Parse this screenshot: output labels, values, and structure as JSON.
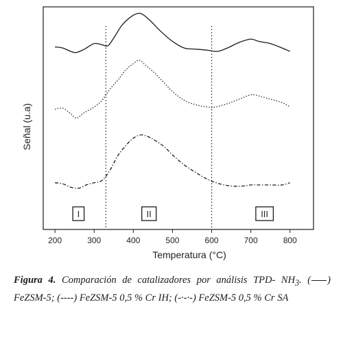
{
  "chart_data": {
    "type": "line",
    "xlabel": "Temperatura (°C)",
    "ylabel": "Señal (u.a)",
    "xlim": [
      170,
      860
    ],
    "ylim": [
      0,
      100
    ],
    "xticks": [
      200,
      300,
      400,
      500,
      600,
      700,
      800
    ],
    "xtick_labels": [
      "200",
      "300",
      "400",
      "500",
      "600",
      "700",
      "800"
    ],
    "yticks": "none",
    "grid": false,
    "legend": "in caption",
    "vlines": [
      330,
      600
    ],
    "regions": [
      {
        "label": "I",
        "x": 260
      },
      {
        "label": "II",
        "x": 440
      },
      {
        "label": "III",
        "x": 735
      }
    ],
    "series": [
      {
        "style": "solid",
        "x": [
          200,
          220,
          240,
          255,
          275,
          300,
          320,
          335,
          350,
          370,
          390,
          410,
          425,
          445,
          470,
          500,
          530,
          560,
          590,
          615,
          640,
          670,
          700,
          720,
          750,
          780,
          800
        ],
        "y": [
          82,
          81.5,
          80,
          79.5,
          81,
          83.5,
          83,
          82.5,
          86,
          91.5,
          95,
          97,
          96.5,
          93.5,
          89,
          84.5,
          81.5,
          81,
          80.5,
          80,
          81.5,
          84,
          85.5,
          84.5,
          83.5,
          81.5,
          80
        ]
      },
      {
        "style": "dotted",
        "x": [
          200,
          220,
          240,
          255,
          275,
          300,
          320,
          340,
          360,
          380,
          400,
          415,
          430,
          450,
          470,
          500,
          530,
          560,
          590,
          610,
          640,
          670,
          700,
          720,
          750,
          780,
          800
        ],
        "y": [
          54,
          54.5,
          52,
          50,
          52.5,
          55,
          58,
          63,
          67,
          71.5,
          74.5,
          76,
          74,
          71,
          67.5,
          62,
          58,
          56,
          55,
          55,
          56.5,
          58.5,
          60.5,
          60,
          58.5,
          57,
          55
        ]
      },
      {
        "style": "dash-dot",
        "x": [
          200,
          220,
          240,
          260,
          280,
          300,
          320,
          340,
          360,
          380,
          400,
          420,
          440,
          460,
          480,
          500,
          530,
          560,
          590,
          620,
          650,
          680,
          700,
          720,
          750,
          780,
          800
        ],
        "y": [
          21,
          20.5,
          19,
          18.5,
          20,
          21,
          22,
          26.5,
          33,
          37.5,
          41,
          42.5,
          41.5,
          39.5,
          37,
          33.5,
          29,
          25.5,
          22.5,
          20.5,
          19.5,
          19.5,
          20,
          20,
          20,
          20,
          21
        ]
      }
    ]
  },
  "caption": {
    "figure_label": "Figura 4.",
    "text_main": "Comparación de catalizadores por análisis TPD- NH",
    "subscript": "3",
    "text_after_sub": ".",
    "legend_solid_text": "FeZSM-5;",
    "legend_dotted_marker": "(----)",
    "legend_dotted_text": "FeZSM-5 0,5 % Cr IH;",
    "legend_dashdot_marker": "(-·-·-)",
    "legend_dashdot_text": "FeZSM-5 0,5 % Cr SA"
  }
}
